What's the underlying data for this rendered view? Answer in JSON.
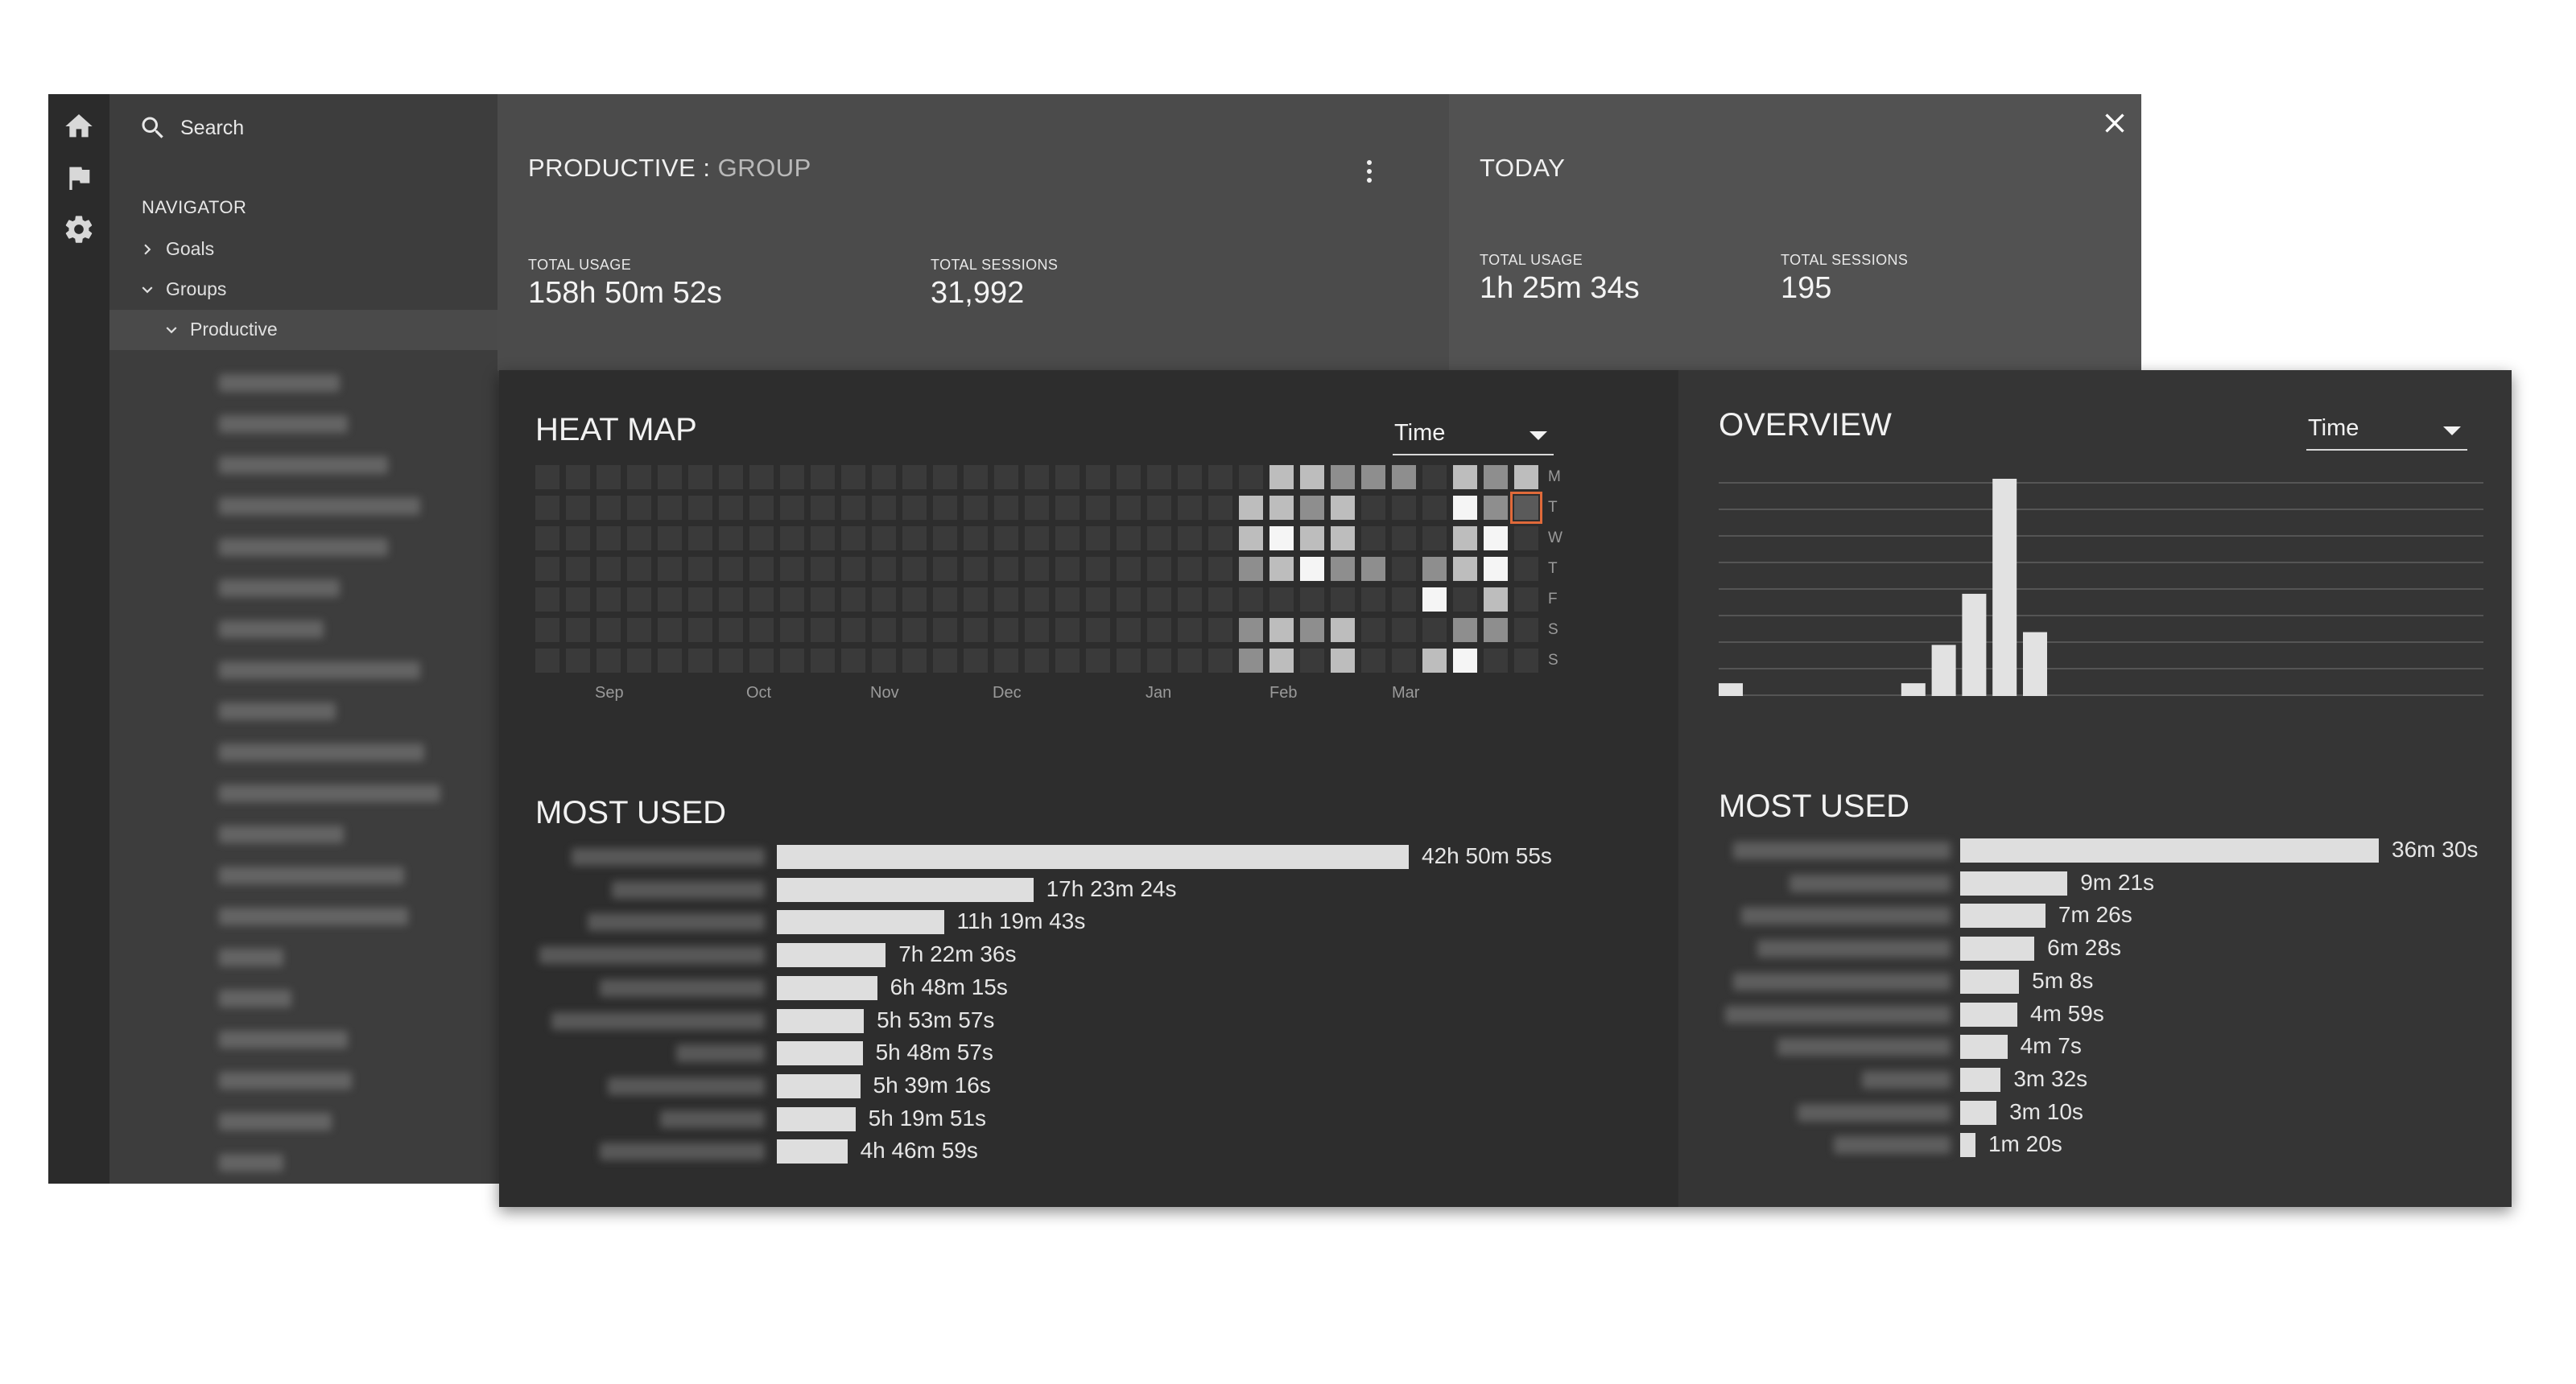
{
  "search": {
    "placeholder": "Search"
  },
  "navigator": {
    "heading": "NAVIGATOR",
    "goals": "Goals",
    "groups": "Groups",
    "productive": "Productive"
  },
  "header": {
    "title": "PRODUCTIVE",
    "separator": " : ",
    "subtitle": "GROUP",
    "total_usage_label": "TOTAL USAGE",
    "total_usage_value": "158h 50m 52s",
    "total_sessions_label": "TOTAL SESSIONS",
    "total_sessions_value": "31,992"
  },
  "today": {
    "title": "TODAY",
    "total_usage_label": "TOTAL USAGE",
    "total_usage_value": "1h 25m 34s",
    "total_sessions_label": "TOTAL SESSIONS",
    "total_sessions_value": "195"
  },
  "heatmap": {
    "title": "HEAT MAP",
    "dropdown": "Time",
    "day_labels": [
      "M",
      "T",
      "W",
      "T",
      "F",
      "S",
      "S"
    ],
    "month_labels": [
      "Sep",
      "Oct",
      "Nov",
      "Dec",
      "Jan",
      "Feb",
      "Mar"
    ],
    "weeks": 33,
    "active_weeks": {
      "24": [
        0,
        3,
        3,
        2,
        0,
        2,
        2
      ],
      "25": [
        3,
        3,
        4,
        3,
        0,
        3,
        3
      ],
      "26": [
        3,
        2,
        3,
        4,
        0,
        2,
        0
      ],
      "27": [
        2,
        3,
        3,
        2,
        0,
        3,
        3
      ],
      "28": [
        2,
        0,
        0,
        2,
        0,
        0,
        0
      ],
      "29": [
        2,
        0,
        0,
        0,
        0,
        0,
        0
      ],
      "30": [
        0,
        0,
        0,
        2,
        4,
        0,
        3
      ],
      "31": [
        3,
        4,
        3,
        3,
        0,
        2,
        4
      ],
      "32": [
        2,
        2,
        4,
        4,
        3,
        2,
        0
      ],
      "33": [
        3,
        1,
        0,
        0,
        0,
        0,
        0
      ]
    },
    "selected": {
      "week": 33,
      "day": 1
    }
  },
  "colors": {
    "heat_levels": [
      "#3a3a3a",
      "#5a5a5a",
      "#8e8e8e",
      "#bdbdbd",
      "#f5f5f5"
    ],
    "selected_outline": "#e06a3a"
  },
  "most_used": {
    "title": "MOST USED",
    "items": [
      {
        "value": "42h 50m 55s",
        "hours": 42.85
      },
      {
        "value": "17h 23m 24s",
        "hours": 17.39
      },
      {
        "value": "11h 19m 43s",
        "hours": 11.33
      },
      {
        "value": "7h 22m 36s",
        "hours": 7.38
      },
      {
        "value": "6h 48m 15s",
        "hours": 6.8
      },
      {
        "value": "5h 53m 57s",
        "hours": 5.9
      },
      {
        "value": "5h 48m 57s",
        "hours": 5.82
      },
      {
        "value": "5h 39m 16s",
        "hours": 5.65
      },
      {
        "value": "5h 19m 51s",
        "hours": 5.33
      },
      {
        "value": "4h 46m 59s",
        "hours": 4.78
      }
    ]
  },
  "overview": {
    "title": "OVERVIEW",
    "dropdown": "Time",
    "chart_data": {
      "type": "bar",
      "title": "OVERVIEW",
      "xlabel": "",
      "ylabel": "",
      "grid": true,
      "values": [
        1,
        0,
        0,
        0,
        0,
        0,
        1,
        4,
        8,
        17,
        5,
        0,
        0,
        0,
        0,
        0,
        0,
        0,
        0,
        0,
        0,
        0,
        0,
        0
      ],
      "ylim": [
        0,
        17
      ]
    },
    "most_used_title": "MOST USED",
    "most_used": [
      {
        "value": "36m 30s",
        "seconds": 2190
      },
      {
        "value": "9m 21s",
        "seconds": 561
      },
      {
        "value": "7m 26s",
        "seconds": 446
      },
      {
        "value": "6m 28s",
        "seconds": 388
      },
      {
        "value": "5m 8s",
        "seconds": 308
      },
      {
        "value": "4m 59s",
        "seconds": 299
      },
      {
        "value": "4m 7s",
        "seconds": 247
      },
      {
        "value": "3m 32s",
        "seconds": 212
      },
      {
        "value": "3m 10s",
        "seconds": 190
      },
      {
        "value": "1m 20s",
        "seconds": 80
      }
    ]
  }
}
